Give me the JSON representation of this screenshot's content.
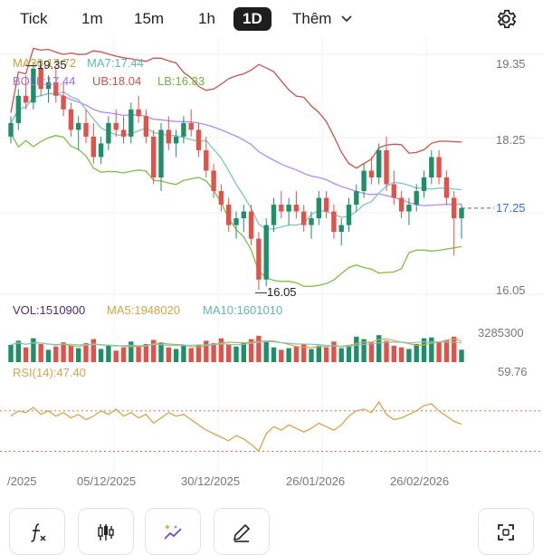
{
  "timeframes": [
    "Tick",
    "1m",
    "15m",
    "1h",
    "1D"
  ],
  "active_timeframe": "1D",
  "more_label": "Thêm",
  "price_panel": {
    "ma_label": "MA30:17.72",
    "ma7_label": "MA7:17.44",
    "boll_label": "BOLL:17.44",
    "ub_label": "UB:18.04",
    "lb_label": "LB:16.83",
    "high_marker": "19.35",
    "low_marker": "16.05",
    "axis_top": "19.35",
    "axis_mid": "18.25",
    "axis_bottom": "16.05",
    "current_price": "17.25",
    "axis_ticks": [
      "19.35",
      "18.25",
      "16.05"
    ]
  },
  "volume_panel": {
    "vol_label": "VOL:1510900",
    "ma5_label": "MA5:1948020",
    "ma10_label": "MA10:1601010",
    "axis_top": "3285300"
  },
  "rsi_panel": {
    "rsi_label": "RSI(14):47.40",
    "axis_top": "59.76"
  },
  "x_axis_labels": [
    "/2025",
    "05/12/2025",
    "30/12/2025",
    "26/01/2026",
    "26/02/2026"
  ],
  "colors": {
    "up": "#1f8f6a",
    "down": "#e0534a",
    "ma30": "#8b5cf6",
    "ma7": "#7cc8c0",
    "upper_band": "#c9544a",
    "lower_band": "#7cc142",
    "rsi": "#d9a44a",
    "vol_ma5": "#d9a44a",
    "vol_ma10": "#7cc8c0",
    "volume_label": "#4b2a8a"
  },
  "chart_data": {
    "type": "candlestick",
    "candles": [
      [
        18.3,
        18.6,
        18.2,
        18.5
      ],
      [
        18.5,
        19.0,
        18.4,
        18.9
      ],
      [
        18.9,
        19.2,
        18.7,
        18.8
      ],
      [
        18.8,
        19.4,
        18.7,
        19.3
      ],
      [
        19.3,
        19.35,
        18.9,
        19.0
      ],
      [
        19.0,
        19.2,
        18.8,
        19.1
      ],
      [
        19.1,
        19.3,
        18.8,
        18.9
      ],
      [
        18.9,
        19.1,
        18.6,
        18.7
      ],
      [
        18.7,
        18.8,
        18.3,
        18.4
      ],
      [
        18.4,
        18.6,
        18.1,
        18.5
      ],
      [
        18.5,
        18.7,
        18.2,
        18.3
      ],
      [
        18.3,
        18.5,
        17.9,
        18.0
      ],
      [
        18.0,
        18.3,
        17.9,
        18.2
      ],
      [
        18.2,
        18.6,
        18.1,
        18.5
      ],
      [
        18.5,
        18.7,
        18.3,
        18.4
      ],
      [
        18.4,
        18.6,
        18.2,
        18.3
      ],
      [
        18.3,
        18.8,
        18.2,
        18.7
      ],
      [
        18.7,
        18.9,
        18.5,
        18.6
      ],
      [
        18.6,
        18.7,
        18.2,
        18.3
      ],
      [
        18.3,
        18.4,
        17.6,
        17.7
      ],
      [
        17.7,
        18.5,
        17.5,
        18.4
      ],
      [
        18.4,
        18.6,
        18.1,
        18.2
      ],
      [
        18.2,
        18.4,
        18.0,
        18.3
      ],
      [
        18.3,
        18.6,
        18.2,
        18.5
      ],
      [
        18.5,
        18.7,
        18.3,
        18.4
      ],
      [
        18.4,
        18.5,
        18.0,
        18.1
      ],
      [
        18.1,
        18.3,
        17.7,
        17.8
      ],
      [
        17.8,
        17.9,
        17.4,
        17.5
      ],
      [
        17.5,
        17.6,
        17.2,
        17.3
      ],
      [
        17.3,
        17.4,
        16.9,
        17.0
      ],
      [
        17.0,
        17.2,
        16.8,
        17.1
      ],
      [
        17.1,
        17.3,
        16.9,
        17.2
      ],
      [
        17.2,
        17.3,
        16.7,
        16.8
      ],
      [
        16.8,
        16.9,
        16.05,
        16.2
      ],
      [
        16.2,
        17.1,
        16.1,
        17.0
      ],
      [
        17.0,
        17.4,
        16.9,
        17.3
      ],
      [
        17.3,
        17.5,
        17.1,
        17.2
      ],
      [
        17.2,
        17.4,
        17.0,
        17.3
      ],
      [
        17.3,
        17.5,
        17.1,
        17.2
      ],
      [
        17.2,
        17.3,
        16.9,
        17.0
      ],
      [
        17.0,
        17.2,
        16.8,
        17.1
      ],
      [
        17.1,
        17.5,
        17.0,
        17.4
      ],
      [
        17.4,
        17.5,
        17.1,
        17.2
      ],
      [
        17.2,
        17.3,
        16.8,
        16.9
      ],
      [
        16.9,
        17.1,
        16.7,
        17.0
      ],
      [
        17.0,
        17.4,
        16.9,
        17.3
      ],
      [
        17.3,
        17.6,
        17.2,
        17.5
      ],
      [
        17.5,
        17.9,
        17.4,
        17.8
      ],
      [
        17.8,
        18.0,
        17.6,
        17.7
      ],
      [
        17.7,
        18.2,
        17.6,
        18.1
      ],
      [
        18.1,
        18.3,
        17.5,
        17.6
      ],
      [
        17.6,
        17.8,
        17.3,
        17.4
      ],
      [
        17.4,
        17.5,
        17.1,
        17.2
      ],
      [
        17.2,
        17.4,
        17.0,
        17.3
      ],
      [
        17.3,
        17.6,
        17.2,
        17.5
      ],
      [
        17.5,
        17.8,
        17.4,
        17.7
      ],
      [
        17.7,
        18.1,
        17.6,
        18.0
      ],
      [
        18.0,
        18.1,
        17.6,
        17.7
      ],
      [
        17.7,
        17.8,
        17.3,
        17.4
      ],
      [
        17.4,
        17.5,
        16.55,
        17.1
      ],
      [
        17.1,
        17.3,
        16.8,
        17.25
      ]
    ],
    "volume": [
      2.1,
      2.6,
      1.8,
      2.9,
      2.2,
      1.5,
      1.9,
      2.4,
      2.0,
      1.7,
      2.3,
      2.8,
      1.6,
      2.0,
      1.4,
      1.8,
      2.5,
      1.9,
      2.2,
      2.7,
      2.4,
      1.8,
      1.6,
      2.0,
      1.7,
      2.1,
      2.6,
      2.3,
      2.9,
      2.2,
      1.9,
      2.4,
      2.8,
      3.2,
      2.6,
      1.8,
      1.5,
      1.7,
      1.9,
      2.2,
      1.6,
      2.0,
      1.8,
      2.5,
      1.7,
      2.1,
      3.1,
      2.8,
      2.4,
      3.28,
      2.6,
      2.0,
      1.8,
      1.6,
      2.2,
      2.9,
      3.0,
      2.5,
      2.7,
      3.1,
      1.51
    ],
    "rsi": [
      52,
      55,
      54,
      57,
      53,
      55,
      52,
      54,
      51,
      53,
      50,
      52,
      55,
      53,
      56,
      52,
      54,
      51,
      53,
      48,
      51,
      54,
      52,
      53,
      50,
      47,
      44,
      42,
      40,
      38,
      41,
      39,
      36,
      32,
      42,
      46,
      44,
      47,
      45,
      43,
      45,
      48,
      46,
      44,
      47,
      52,
      55,
      56,
      54,
      60,
      53,
      50,
      51,
      53,
      55,
      58,
      59,
      55,
      52,
      49,
      47.4
    ],
    "xlabels": [
      "/2025",
      "05/12/2025",
      "30/12/2025",
      "26/01/2026",
      "26/02/2026"
    ],
    "price_range": [
      16.05,
      19.35
    ],
    "last_price": 17.25
  }
}
